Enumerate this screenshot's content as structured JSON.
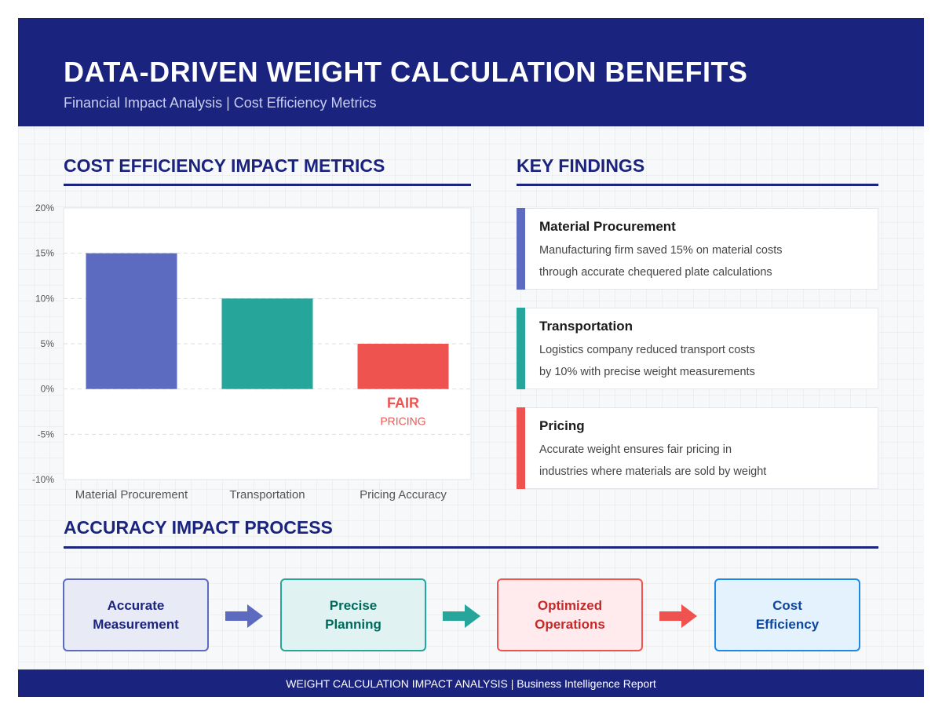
{
  "header": {
    "title": "DATA-DRIVEN WEIGHT CALCULATION BENEFITS",
    "subtitle": "Financial Impact Analysis | Cost Efficiency Metrics"
  },
  "chart_section": {
    "title": "COST EFFICIENCY IMPACT METRICS"
  },
  "chart_data": {
    "type": "bar",
    "title": "",
    "xlabel": "",
    "ylabel": "",
    "categories": [
      "Material Procurement",
      "Transportation",
      "Pricing Accuracy"
    ],
    "values": [
      15,
      10,
      5
    ],
    "colors": [
      "#5c6bc0",
      "#26a69a",
      "#ef5350"
    ],
    "ylim": [
      -10,
      20
    ],
    "yticks": [
      20,
      15,
      10,
      5,
      0,
      -5,
      -10
    ],
    "ytick_labels": [
      "20%",
      "15%",
      "10%",
      "5%",
      "0%",
      "-5%",
      "-10%"
    ],
    "grid": "horizontal dashed",
    "legend": "none",
    "annotation": {
      "category": "Pricing Accuracy",
      "line1": "FAIR",
      "line2": "PRICING",
      "color": "#ef5350"
    }
  },
  "findings_section": {
    "title": "KEY FINDINGS",
    "items": [
      {
        "title": "Material Procurement",
        "line1": "Manufacturing firm saved 15% on material costs",
        "line2": "through accurate chequered plate calculations",
        "color": "#5c6bc0"
      },
      {
        "title": "Transportation",
        "line1": "Logistics company reduced transport costs",
        "line2": "by 10% with precise weight measurements",
        "color": "#26a69a"
      },
      {
        "title": "Pricing",
        "line1": "Accurate weight ensures fair pricing in",
        "line2": "industries where materials are sold by weight",
        "color": "#ef5350"
      }
    ]
  },
  "process_section": {
    "title": "ACCURACY IMPACT PROCESS",
    "steps": [
      {
        "label": "Accurate\nMeasurement",
        "text_color": "#1a237e",
        "bg": "#e8eaf6",
        "border": "#5c6bc0"
      },
      {
        "label": "Precise\nPlanning",
        "text_color": "#00695c",
        "bg": "#e0f2f1",
        "border": "#26a69a"
      },
      {
        "label": "Optimized\nOperations",
        "text_color": "#c62828",
        "bg": "#ffebee",
        "border": "#ef5350"
      },
      {
        "label": "Cost\nEfficiency",
        "text_color": "#0d47a1",
        "bg": "#e3f2fd",
        "border": "#1e88e5"
      }
    ],
    "arrows": [
      "#5c6bc0",
      "#26a69a",
      "#ef5350"
    ]
  },
  "footer": {
    "text": "WEIGHT CALCULATION IMPACT ANALYSIS | Business Intelligence Report"
  }
}
